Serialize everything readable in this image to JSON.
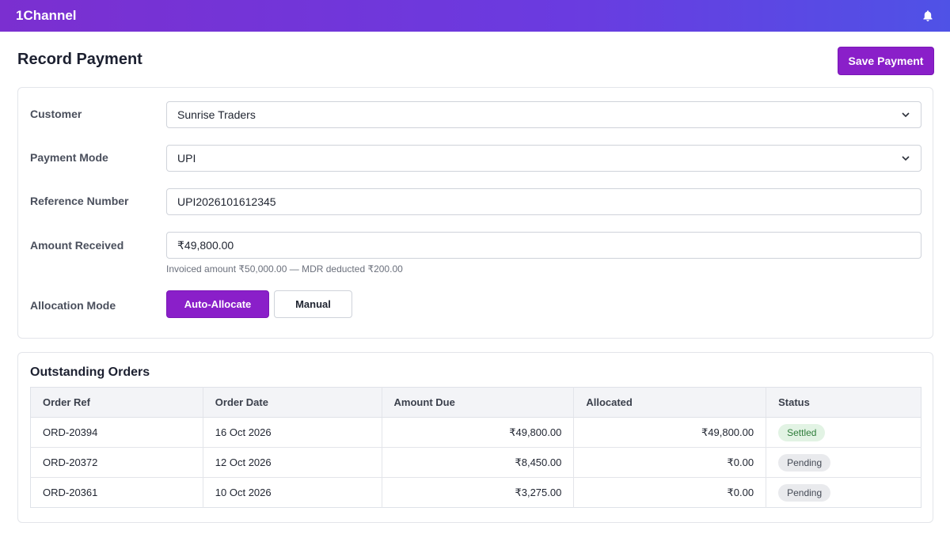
{
  "app": {
    "brand": "1Channel"
  },
  "header": {
    "title": "Record Payment",
    "save_label": "Save Payment"
  },
  "form": {
    "customer": {
      "label": "Customer",
      "value": "Sunrise Traders"
    },
    "payment_mode": {
      "label": "Payment Mode",
      "value": "UPI"
    },
    "reference_number": {
      "label": "Reference Number",
      "value": "UPI2026101612345"
    },
    "amount_received": {
      "label": "Amount Received",
      "value": "₹49,800.00",
      "hint": "Invoiced amount ₹50,000.00 — MDR deducted ₹200.00"
    },
    "allocation_mode": {
      "label": "Allocation Mode",
      "auto_label": "Auto-Allocate",
      "manual_label": "Manual"
    }
  },
  "orders": {
    "title": "Outstanding Orders",
    "columns": [
      "Order Ref",
      "Order Date",
      "Amount Due",
      "Allocated",
      "Status"
    ],
    "rows": [
      {
        "ref": "ORD-20394",
        "date": "16 Oct 2026",
        "due": "₹49,800.00",
        "allocated": "₹49,800.00",
        "status": "Settled"
      },
      {
        "ref": "ORD-20372",
        "date": "12 Oct 2026",
        "due": "₹8,450.00",
        "allocated": "₹0.00",
        "status": "Pending"
      },
      {
        "ref": "ORD-20361",
        "date": "10 Oct 2026",
        "due": "₹3,275.00",
        "allocated": "₹0.00",
        "status": "Pending"
      }
    ]
  },
  "icons": {
    "notifications": "bell-icon",
    "dropdown": "chevron-down-icon"
  },
  "colors": {
    "accent": "#8a1fc9",
    "topbar_start": "#7b2fd0",
    "topbar_end": "#4f52e6",
    "settled_bg": "#e2f3e4",
    "settled_text": "#2e7d3a",
    "pending_bg": "#e9eaed"
  }
}
